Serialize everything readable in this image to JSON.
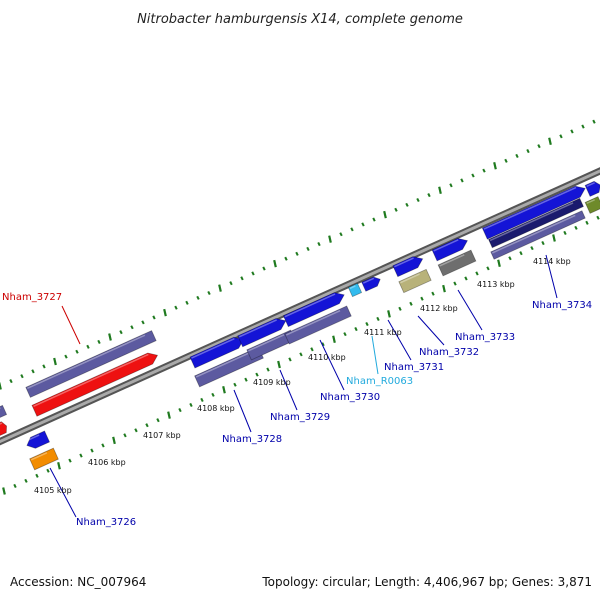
{
  "title": "Nitrobacter hamburgensis X14, complete genome",
  "footer": {
    "accession": "Accession: NC_007964",
    "summary": "Topology: circular; Length: 4,406,967 bp; Genes: 3,871"
  },
  "scale_labels": [
    "4105 kbp",
    "4106 kbp",
    "4107 kbp",
    "4108 kbp",
    "4109 kbp",
    "4110 kbp",
    "4111 kbp",
    "4112 kbp",
    "4113 kbp",
    "4114 kbp"
  ],
  "gene_labels": [
    {
      "text": "Nham_3727",
      "color": "#cc0000"
    },
    {
      "text": "Nham_3726",
      "color": "#0000aa"
    },
    {
      "text": "Nham_3728",
      "color": "#0000aa"
    },
    {
      "text": "Nham_3729",
      "color": "#0000aa"
    },
    {
      "text": "Nham_3730",
      "color": "#0000aa"
    },
    {
      "text": "Nham_R0063",
      "color": "#22aadd"
    },
    {
      "text": "Nham_3731",
      "color": "#0000aa"
    },
    {
      "text": "Nham_3732",
      "color": "#0000aa"
    },
    {
      "text": "Nham_3733",
      "color": "#0000aa"
    },
    {
      "text": "Nham_3734",
      "color": "#0000aa"
    }
  ],
  "colors": {
    "backbone": "#8a8a8a",
    "tick": "#1f7a1f",
    "blue": "#1414d6",
    "slate": "#5c5aa0",
    "red": "#ee1111",
    "orange": "#f28c00",
    "khaki": "#b8b27a",
    "gray": "#6e6e6e",
    "navy": "#1a1a6e",
    "olive": "#6e8a2a",
    "cyan": "#33bbee"
  }
}
